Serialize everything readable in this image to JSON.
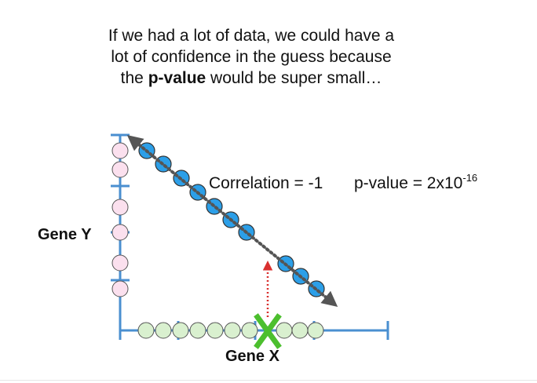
{
  "caption": {
    "line1": "If we had a lot of data, we could have a",
    "line2": "lot of confidence in the guess because",
    "line3_prefix": "the ",
    "line3_bold": "p-value",
    "line3_suffix": " would be super small…"
  },
  "stats": {
    "correlation": "Correlation = -1",
    "pvalue_base": "p-value = 2x10",
    "pvalue_exponent": "-16"
  },
  "axes": {
    "x_label": "Gene X",
    "y_label": "Gene Y"
  },
  "colors": {
    "axis": "#4a8fd0",
    "pink_fill": "#fbe0ee",
    "green_fill": "#d9f0cf",
    "blue_fill": "#2c9fe8",
    "trend_line": "#555555",
    "guess_arrow": "#d9302f",
    "x_marker": "#4cbf2e"
  },
  "icons": {
    "x_marker": "x-marker-icon",
    "guess_arrow": "arrow-up-icon",
    "trend_line": "dotted-double-arrow-icon"
  }
}
